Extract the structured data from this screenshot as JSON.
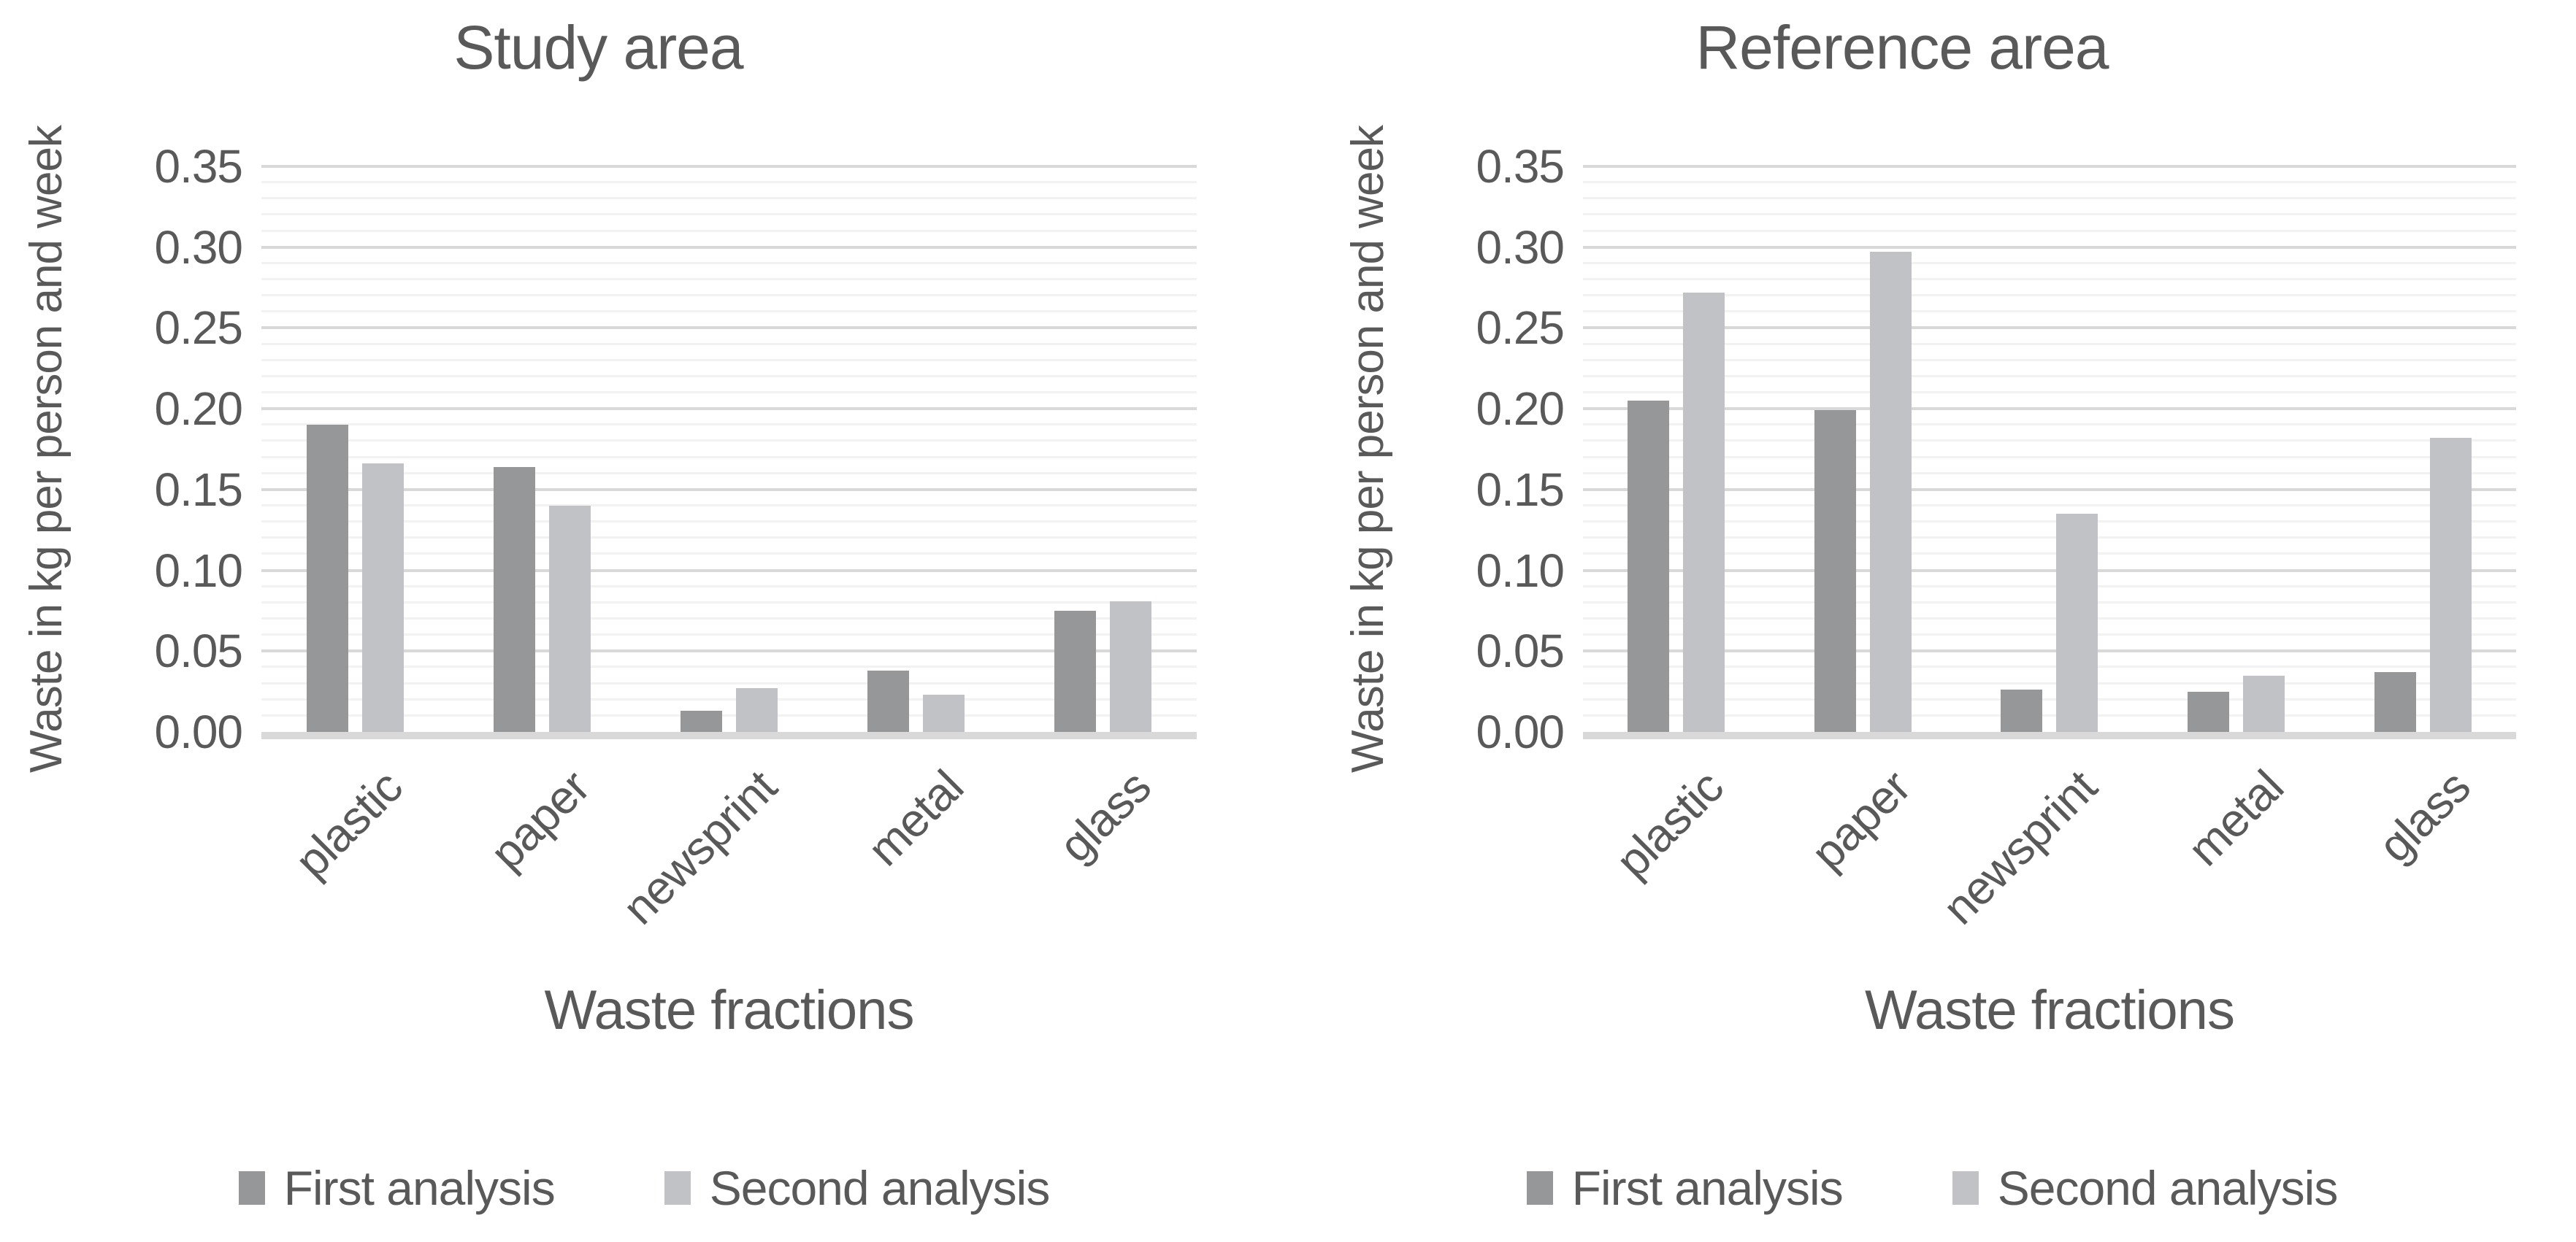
{
  "colors": {
    "text": "#595959",
    "background": "#ffffff",
    "major_gridline": "#d9d9d9",
    "minor_gridline": "#f2f2f2",
    "axis_line": "#d9d9d9",
    "series_first": "#959799",
    "series_second": "#c0c2c5"
  },
  "chart_data": [
    {
      "type": "bar",
      "title": "Study area",
      "xlabel": "Waste fractions",
      "ylabel": "Waste in kg per person and week",
      "categories": [
        "plastic",
        "paper",
        "newsprint",
        "metal",
        "glass"
      ],
      "series": [
        {
          "name": "First analysis",
          "color": "#959799",
          "values": [
            0.19,
            0.164,
            0.013,
            0.038,
            0.075
          ]
        },
        {
          "name": "Second analysis",
          "color": "#c0c2c5",
          "values": [
            0.166,
            0.14,
            0.027,
            0.023,
            0.081
          ]
        }
      ],
      "ylim": [
        0,
        0.35
      ],
      "ytick_step": 0.05,
      "minor_gridline_step": 0.01,
      "tick_format_decimals": 2,
      "grid": true,
      "legend_position": "bottom"
    },
    {
      "type": "bar",
      "title": "Reference area",
      "xlabel": "Waste fractions",
      "ylabel": "Waste in kg per person and week",
      "categories": [
        "plastic",
        "paper",
        "newsprint",
        "metal",
        "glass"
      ],
      "series": [
        {
          "name": "First analysis",
          "color": "#959799",
          "values": [
            0.205,
            0.199,
            0.026,
            0.025,
            0.037
          ]
        },
        {
          "name": "Second analysis",
          "color": "#c0c2c5",
          "values": [
            0.272,
            0.297,
            0.135,
            0.035,
            0.182
          ]
        }
      ],
      "ylim": [
        0,
        0.35
      ],
      "ytick_step": 0.05,
      "minor_gridline_step": 0.01,
      "tick_format_decimals": 2,
      "grid": true,
      "legend_position": "bottom"
    }
  ]
}
